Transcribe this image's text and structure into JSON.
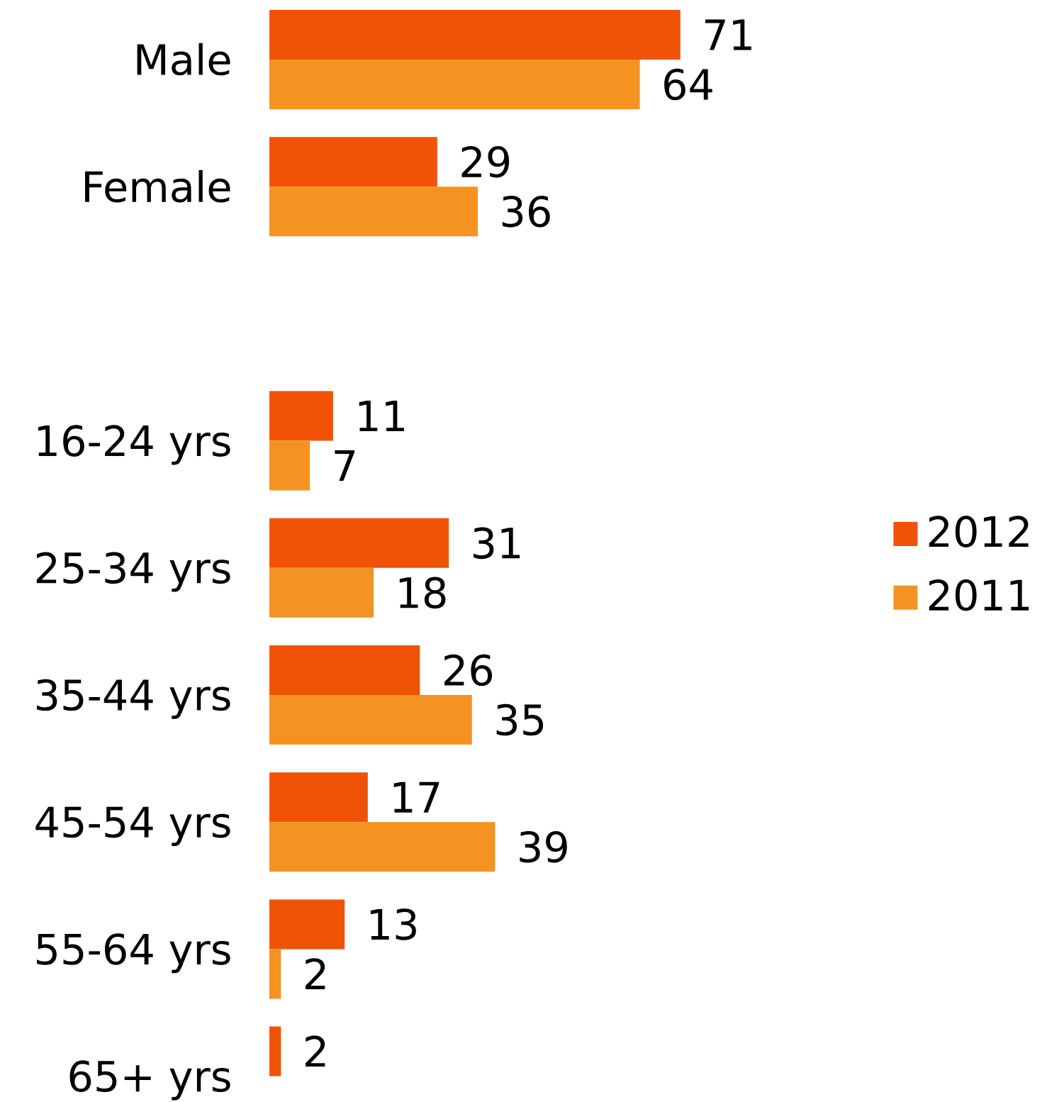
{
  "chart_data": {
    "type": "bar",
    "orientation": "horizontal",
    "categories": [
      "Male",
      "Female",
      null,
      "16-24 yrs",
      "25-34 yrs",
      "35-44 yrs",
      "45-54 yrs",
      "55-64 yrs",
      "65+ yrs"
    ],
    "series": [
      {
        "name": "2012",
        "color": "#f05206",
        "values": [
          71,
          29,
          null,
          11,
          31,
          26,
          17,
          13,
          2
        ]
      },
      {
        "name": "2011",
        "color": "#f59322",
        "values": [
          64,
          36,
          null,
          7,
          18,
          35,
          39,
          2,
          null
        ]
      }
    ],
    "data_labels": true,
    "legend": "right",
    "tick_labels": "y"
  }
}
